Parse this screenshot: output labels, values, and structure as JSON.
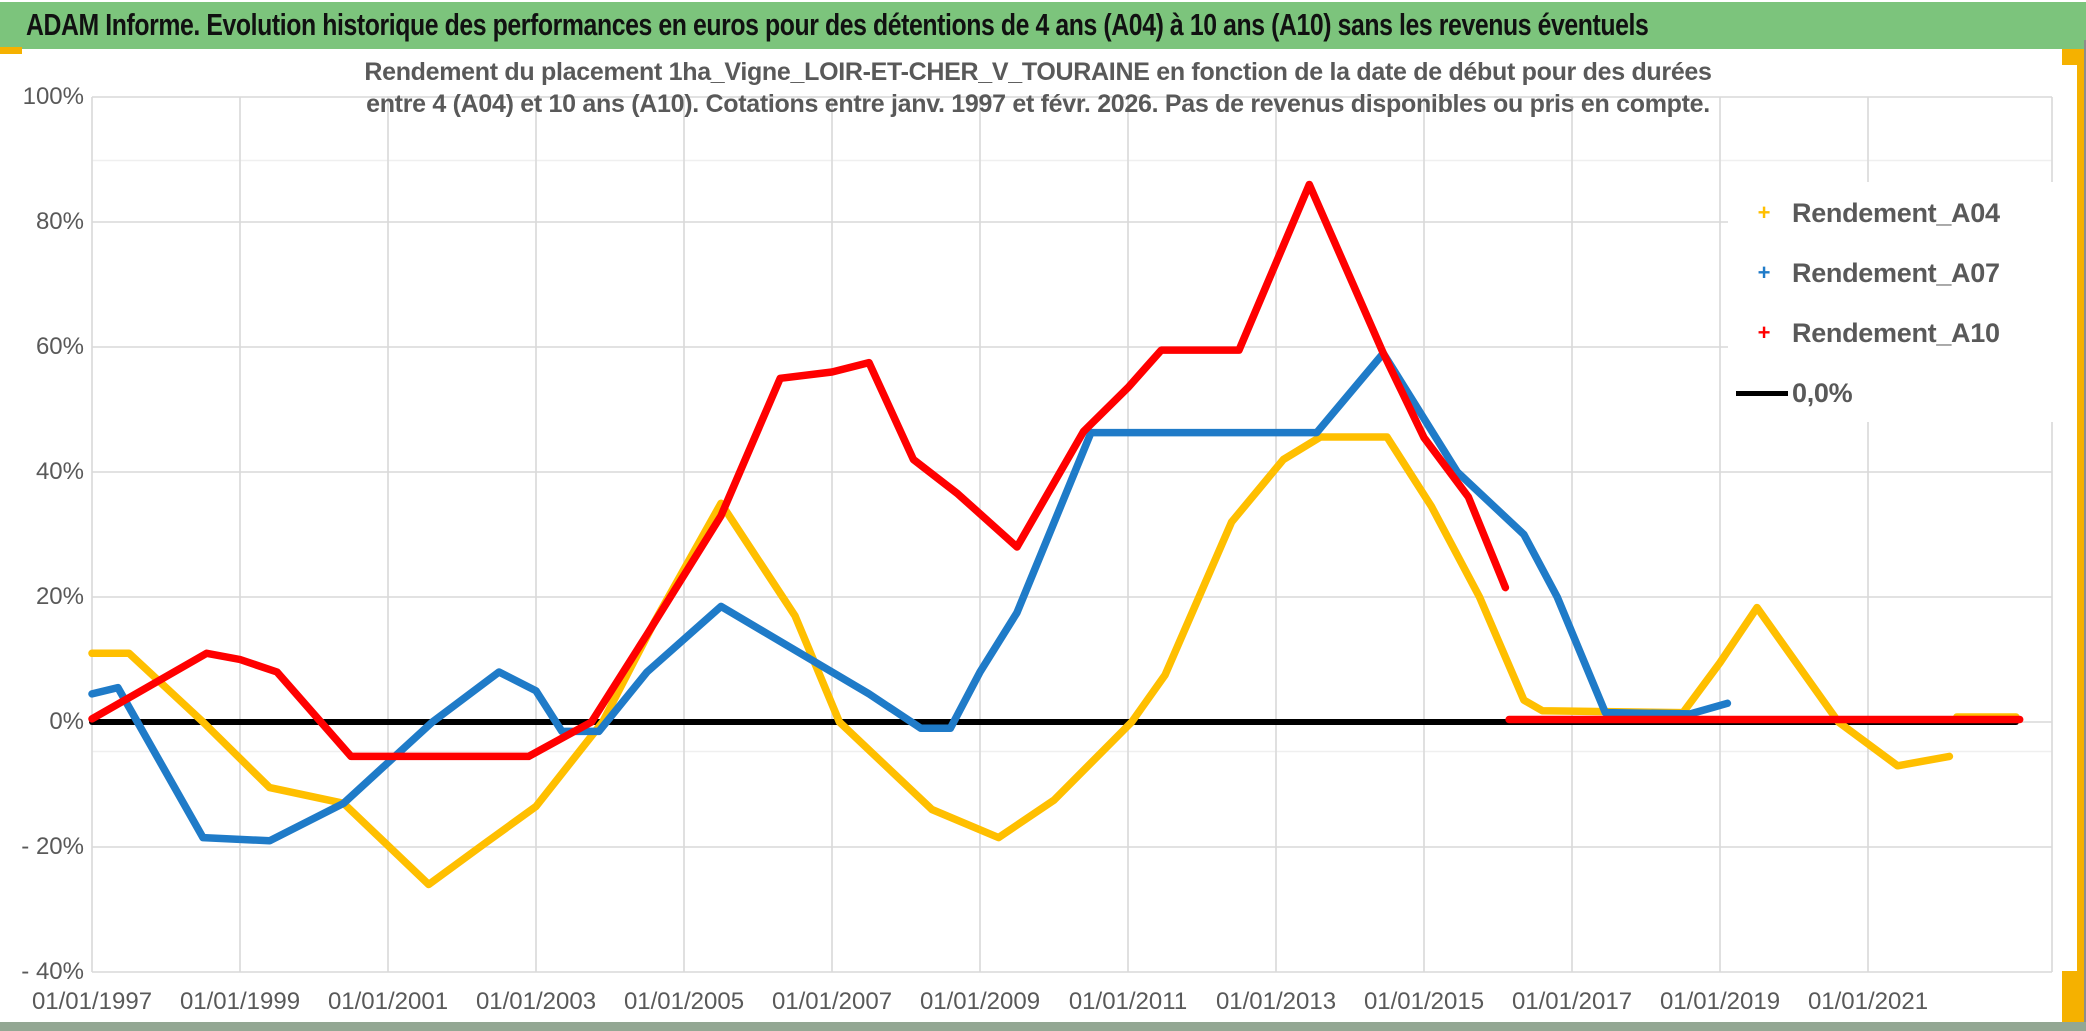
{
  "header": {
    "title": "ADAM Informe. Evolution historique des performances en euros pour des détentions de 4 ans (A04) à 10 ans (A10) sans les revenus éventuels"
  },
  "chart": {
    "title_line1": "Rendement du placement 1ha_Vigne_LOIR-ET-CHER_V_TOURAINE en fonction de la date de début pour des durées",
    "title_line2": "entre 4 (A04) et 10 ans (A10). Cotations entre janv. 1997 et févr. 2026. Pas de revenus disponibles ou pris en compte.",
    "legend": [
      {
        "label": "Rendement_A04",
        "color": "#FFBF00",
        "marker": "plus"
      },
      {
        "label": "Rendement_A07",
        "color": "#1F7BC8",
        "marker": "plus"
      },
      {
        "label": "Rendement_A10",
        "color": "#FF0000",
        "marker": "plus"
      },
      {
        "label": "0,0%",
        "color": "#000000",
        "marker": "line"
      }
    ]
  },
  "colors": {
    "header_green": "#7CC47C",
    "accent_orange": "#F5B100",
    "bottom_strip": "#93A793",
    "gridline": "#D9D9D9",
    "sheet_line": "#EFEFEF",
    "text_gray": "#595959"
  },
  "chart_data": {
    "type": "line",
    "title": "Rendement du placement 1ha_Vigne_LOIR-ET-CHER_V_TOURAINE en fonction de la date de début pour des durées entre 4 (A04) et 10 ans (A10). Cotations entre janv. 1997 et févr. 2026. Pas de revenus disponibles ou pris en compte.",
    "xlabel": "",
    "ylabel": "",
    "x_axis": {
      "tick_labels": [
        "01/01/1997",
        "01/01/1999",
        "01/01/2001",
        "01/01/2003",
        "01/01/2005",
        "01/01/2007",
        "01/01/2009",
        "01/01/2011",
        "01/01/2013",
        "01/01/2015",
        "01/01/2017",
        "01/01/2019",
        "01/01/2021"
      ],
      "tick_years": [
        1997,
        1999,
        2001,
        2003,
        2005,
        2007,
        2009,
        2011,
        2013,
        2015,
        2017,
        2019,
        2021
      ],
      "range_years": [
        1997.0,
        2023.5
      ]
    },
    "y_axis": {
      "tick_labels": [
        "100%",
        "80%",
        "60%",
        "40%",
        "20%",
        "0%",
        "- 20%",
        "- 40%"
      ],
      "tick_values": [
        100,
        80,
        60,
        40,
        20,
        0,
        -20,
        -40
      ],
      "range_percent": [
        -40,
        100
      ],
      "gridlines": true
    },
    "legend_position": "upper-right",
    "series": [
      {
        "name": "Rendement_A04",
        "color": "#FFBF00",
        "unit": "percent",
        "segments": [
          [
            [
              1997.0,
              11
            ],
            [
              1997.5,
              11
            ],
            [
              1998.5,
              0
            ],
            [
              1999.4,
              -10.5
            ],
            [
              2000.4,
              -13
            ],
            [
              2001.55,
              -26
            ],
            [
              2002.3,
              -19.5
            ],
            [
              2003.0,
              -13.5
            ],
            [
              2003.9,
              0
            ],
            [
              2004.6,
              16
            ],
            [
              2005.5,
              35
            ],
            [
              2006.5,
              17
            ],
            [
              2007.1,
              0
            ],
            [
              2008.35,
              -14
            ],
            [
              2009.25,
              -18.5
            ],
            [
              2010.0,
              -12.5
            ],
            [
              2011.05,
              0
            ],
            [
              2011.5,
              7.5
            ],
            [
              2012.4,
              32
            ],
            [
              2013.1,
              42
            ],
            [
              2013.6,
              45.6
            ],
            [
              2014.5,
              45.6
            ],
            [
              2015.1,
              34.5
            ],
            [
              2015.75,
              20
            ],
            [
              2016.35,
              3.5
            ],
            [
              2016.6,
              1.8
            ],
            [
              2018.5,
              1.5
            ],
            [
              2019.0,
              9.5
            ],
            [
              2019.5,
              18.3
            ],
            [
              2020.6,
              0
            ],
            [
              2021.4,
              -7
            ],
            [
              2022.1,
              -5.5
            ]
          ],
          [
            [
              2022.2,
              0.8
            ],
            [
              2023.0,
              0.8
            ]
          ]
        ]
      },
      {
        "name": "Rendement_A07",
        "color": "#1F7BC8",
        "unit": "percent",
        "segments": [
          [
            [
              1997.0,
              4.5
            ],
            [
              1997.35,
              5.5
            ],
            [
              1998.5,
              -18.5
            ],
            [
              1999.4,
              -19
            ],
            [
              2000.4,
              -13
            ],
            [
              2001.6,
              0
            ],
            [
              2002.5,
              8
            ],
            [
              2003.0,
              5
            ],
            [
              2003.35,
              -1.5
            ],
            [
              2003.85,
              -1.5
            ],
            [
              2004.5,
              8
            ],
            [
              2005.5,
              18.5
            ],
            [
              2007.5,
              4.5
            ],
            [
              2008.2,
              -1
            ],
            [
              2008.6,
              -1
            ],
            [
              2009.0,
              8
            ],
            [
              2009.5,
              17.5
            ],
            [
              2010.5,
              46.3
            ],
            [
              2013.55,
              46.3
            ],
            [
              2014.45,
              59
            ],
            [
              2015.45,
              40
            ],
            [
              2016.35,
              30
            ],
            [
              2016.8,
              20
            ],
            [
              2017.45,
              1.5
            ],
            [
              2018.6,
              1.3
            ],
            [
              2019.1,
              3
            ]
          ]
        ]
      },
      {
        "name": "Rendement_A10",
        "color": "#FF0000",
        "unit": "percent",
        "segments": [
          [
            [
              1997.0,
              0.5
            ],
            [
              1998.55,
              11
            ],
            [
              1999.0,
              10
            ],
            [
              1999.5,
              8
            ],
            [
              2000.5,
              -5.5
            ],
            [
              2002.9,
              -5.5
            ],
            [
              2003.75,
              0
            ],
            [
              2004.5,
              14
            ],
            [
              2005.5,
              33
            ],
            [
              2006.3,
              55
            ],
            [
              2007.0,
              56
            ],
            [
              2007.5,
              57.5
            ],
            [
              2008.1,
              42
            ],
            [
              2008.7,
              36.5
            ],
            [
              2009.5,
              28
            ],
            [
              2010.4,
              46.5
            ],
            [
              2011.0,
              53.5
            ],
            [
              2011.45,
              59.5
            ],
            [
              2012.5,
              59.5
            ],
            [
              2013.45,
              86
            ],
            [
              2014.45,
              59
            ],
            [
              2015.0,
              45.5
            ],
            [
              2015.6,
              36
            ],
            [
              2016.1,
              21.5
            ]
          ],
          [
            [
              2016.15,
              0.4
            ],
            [
              2023.05,
              0.4
            ]
          ]
        ]
      },
      {
        "name": "0,0%",
        "color": "#000000",
        "unit": "percent",
        "segments": [
          [
            [
              1997.0,
              0
            ],
            [
              2023.0,
              0
            ]
          ]
        ]
      }
    ]
  }
}
